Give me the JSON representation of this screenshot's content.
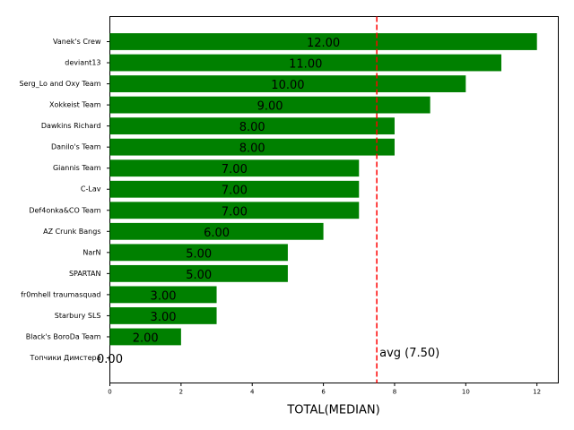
{
  "chart_data": {
    "type": "barh",
    "categories": [
      "Vanek's Crew",
      "deviant13",
      "Serg_Lo and Oxy Team",
      "Xokkeist Team",
      "Dawkins Richard",
      "Danilo's Team",
      "Giannis Team",
      "C-Lav",
      "Def4onka&CO Team",
      "AZ Crunk Bangs",
      "NarN",
      "SPARTAN",
      "fr0mhell traumasquad",
      "Starbury SLS",
      "Black's BoroDa Team",
      "Топчики Димстера"
    ],
    "values": [
      12,
      11,
      10,
      9,
      8,
      8,
      7,
      7,
      7,
      6,
      5,
      5,
      3,
      3,
      2,
      0
    ],
    "value_labels": [
      "12.00",
      "11.00",
      "10.00",
      "9.00",
      "8.00",
      "8.00",
      "7.00",
      "7.00",
      "7.00",
      "6.00",
      "5.00",
      "5.00",
      "3.00",
      "3.00",
      "2.00",
      "0.00"
    ],
    "color": "#008000",
    "xlabel": "TOTAL(MEDIAN)",
    "xlim": [
      0,
      12.6
    ],
    "xticks": [
      0,
      2,
      4,
      6,
      8,
      10,
      12
    ],
    "average": {
      "value": 7.5,
      "label": "avg (7.50)",
      "color": "#ff0000"
    }
  }
}
